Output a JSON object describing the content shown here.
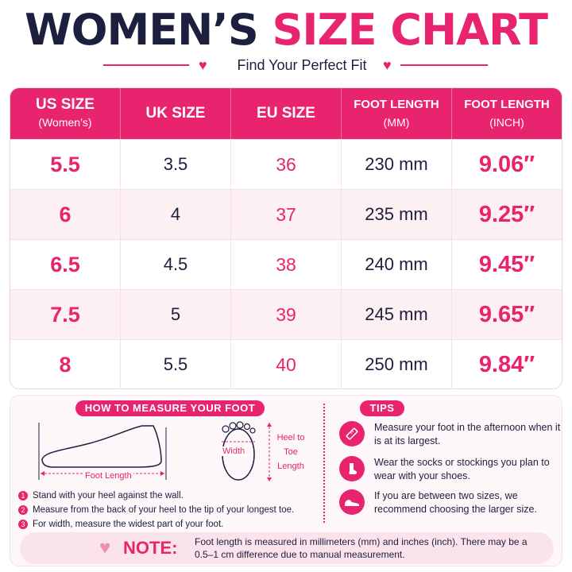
{
  "header": {
    "title_part1": "WOMEN’S",
    "title_part2": "SIZE CHART",
    "subtitle": "Find Your Perfect Fit"
  },
  "table": {
    "headers": [
      {
        "label": "US SIZE",
        "sub": "(Women’s)"
      },
      {
        "label": "UK SIZE",
        "sub": ""
      },
      {
        "label": "EU SIZE",
        "sub": ""
      },
      {
        "label": "FOOT LENGTH",
        "sub": "(MM)"
      },
      {
        "label": "FOOT LENGTH",
        "sub": "(INCH)"
      }
    ],
    "rows": [
      {
        "us": "5.5",
        "uk": "3.5",
        "eu": "36",
        "mm": "230 mm",
        "inch": "9.06″"
      },
      {
        "us": "6",
        "uk": "4",
        "eu": "37",
        "mm": "235 mm",
        "inch": "9.25″"
      },
      {
        "us": "6.5",
        "uk": "4.5",
        "eu": "38",
        "mm": "240 mm",
        "inch": "9.45″"
      },
      {
        "us": "7.5",
        "uk": "5",
        "eu": "39",
        "mm": "245 mm",
        "inch": "9.65″"
      },
      {
        "us": "8",
        "uk": "5.5",
        "eu": "40",
        "mm": "250 mm",
        "inch": "9.84″"
      }
    ]
  },
  "measure": {
    "heading": "HOW TO MEASURE YOUR FOOT",
    "foot_length_label": "Foot Length",
    "width_label": "Width",
    "heel_to_toe_label": "Heel to Toe Length",
    "steps": [
      {
        "num": "1",
        "text": "Stand with your heel against the wall."
      },
      {
        "num": "2",
        "text": "Measure from the back of your heel to the tip of your longest toe."
      },
      {
        "num": "3",
        "text": "For width, measure the widest part of your foot."
      }
    ]
  },
  "tips": {
    "heading": "TIPS",
    "items": [
      {
        "icon": "ruler-icon",
        "text": "Measure your foot in the afternoon when it is at its largest."
      },
      {
        "icon": "sock-icon",
        "text": "Wear the socks or stockings you plan to wear with your shoes."
      },
      {
        "icon": "shoe-icon",
        "text": "If you are between two sizes, we recommend choosing the larger size."
      }
    ]
  },
  "note": {
    "label": "NOTE:",
    "text": "Foot length is measured in millimeters (mm) and inches (inch). There may be a 0.5–1 cm difference due to manual measurement."
  },
  "colors": {
    "accent": "#e8246e",
    "dark": "#1c1f3d",
    "row_alt": "#fdf0f3"
  }
}
